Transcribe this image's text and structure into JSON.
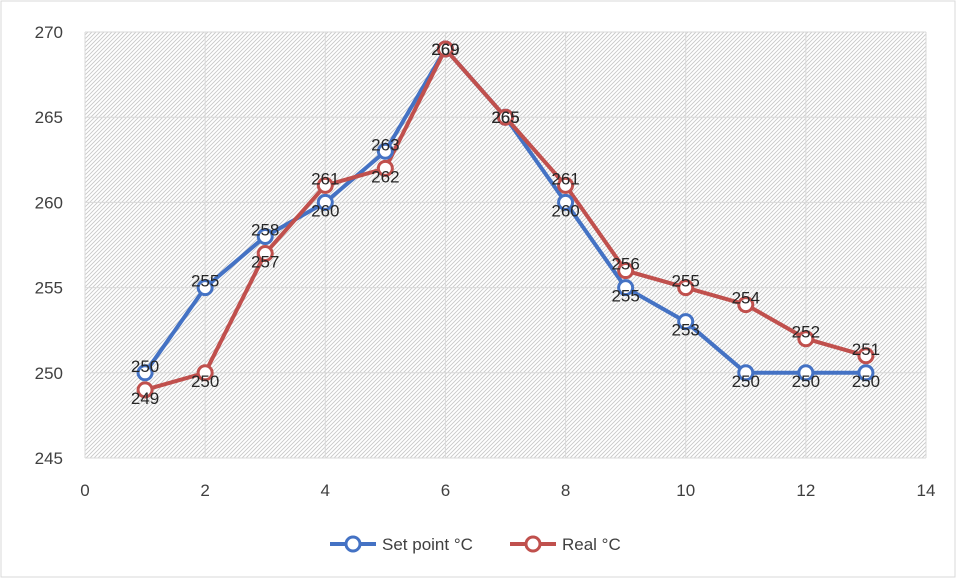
{
  "chart_data": {
    "type": "line",
    "title": "",
    "xlabel": "",
    "ylabel": "",
    "xlim": [
      0,
      14
    ],
    "ylim": [
      245,
      270
    ],
    "x_ticks": [
      0,
      2,
      4,
      6,
      8,
      10,
      12,
      14
    ],
    "y_ticks": [
      245,
      250,
      255,
      260,
      265,
      270
    ],
    "grid": "hatched background with major gridlines",
    "legend_position": "bottom",
    "x": [
      1,
      2,
      3,
      4,
      5,
      6,
      7,
      8,
      9,
      10,
      11,
      12,
      13
    ],
    "series": [
      {
        "name": "Set point °C",
        "color": "#4472C4",
        "values": [
          250,
          255,
          258,
          260,
          263,
          269,
          265,
          260,
          255,
          253,
          250,
          250,
          250
        ]
      },
      {
        "name": "Real °C",
        "color": "#C0504D",
        "values": [
          249,
          250,
          257,
          261,
          262,
          269,
          265,
          261,
          256,
          255,
          254,
          252,
          251
        ]
      }
    ]
  }
}
